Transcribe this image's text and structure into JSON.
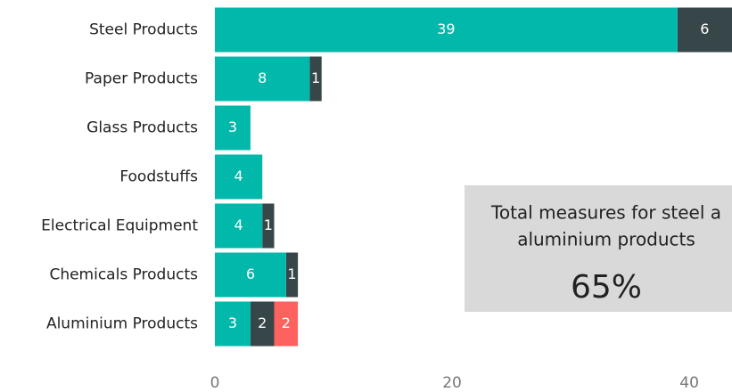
{
  "chart_data": {
    "type": "stacked_barh",
    "categories": [
      "Steel Products",
      "Paper Products",
      "Glass Products",
      "Foodstuffs",
      "Electrical Equipment",
      "Chemicals Products",
      "Aluminium Products"
    ],
    "series": [
      {
        "color": "#01b8aa",
        "values": [
          39,
          8,
          3,
          4,
          4,
          6,
          3
        ]
      },
      {
        "color": "#374649",
        "values": [
          6,
          1,
          null,
          null,
          1,
          1,
          2
        ]
      },
      {
        "color": "#fd625e",
        "values": [
          null,
          null,
          null,
          null,
          null,
          null,
          2
        ]
      }
    ],
    "xlim": [
      0,
      43.6
    ],
    "xticks": [
      0,
      20,
      40
    ],
    "annotation": {
      "lines": [
        "Total measures for steel a",
        "aluminium products"
      ],
      "value": "65%"
    }
  }
}
